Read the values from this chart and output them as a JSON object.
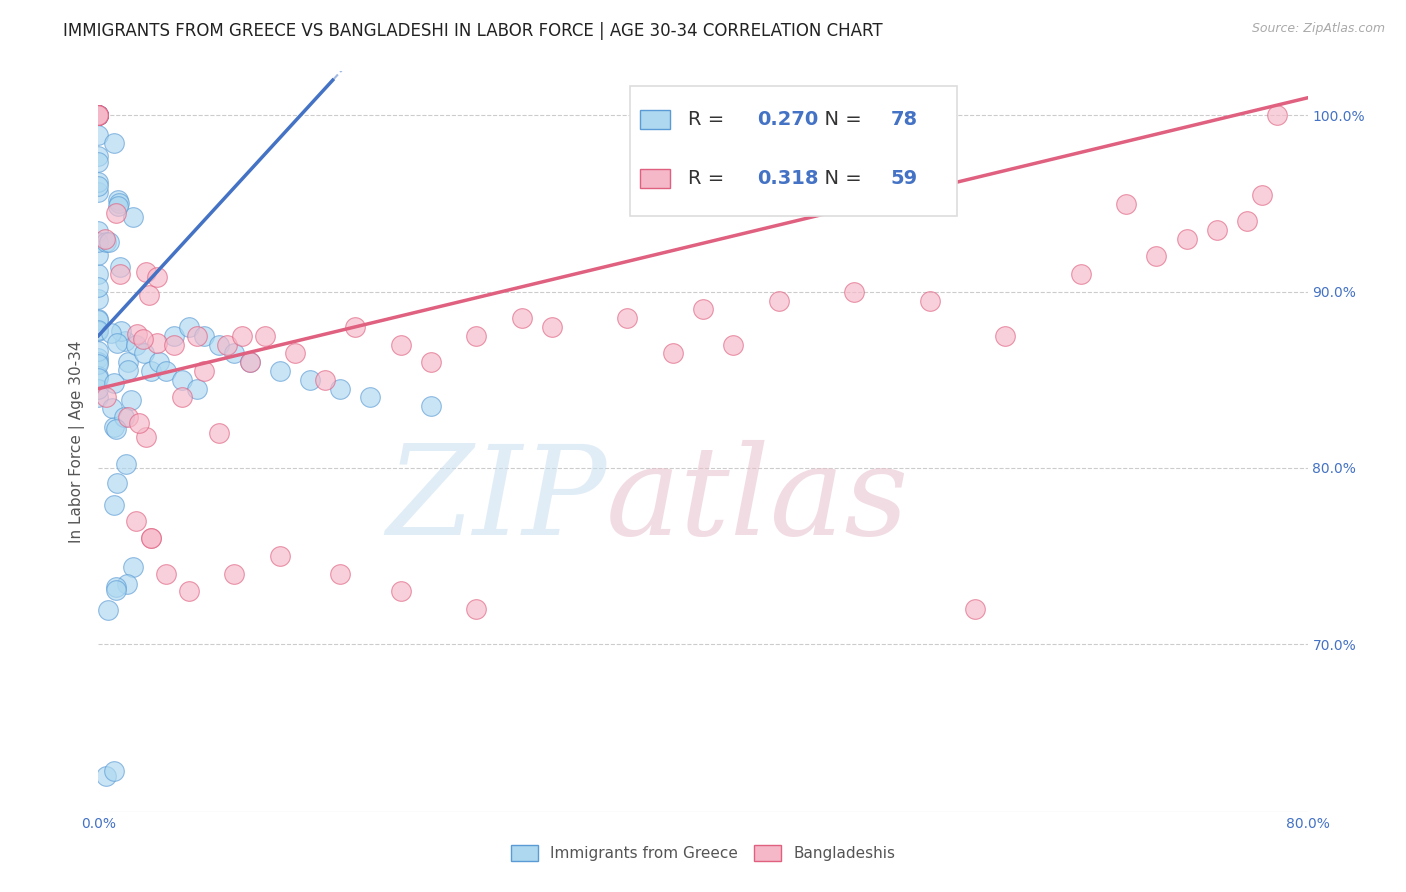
{
  "title": "IMMIGRANTS FROM GREECE VS BANGLADESHI IN LABOR FORCE | AGE 30-34 CORRELATION CHART",
  "source": "Source: ZipAtlas.com",
  "ylabel": "In Labor Force | Age 30-34",
  "xlim": [
    0.0,
    0.8
  ],
  "ylim": [
    0.605,
    1.025
  ],
  "yticks_right": [
    0.7,
    0.8,
    0.9,
    1.0
  ],
  "ytick_right_labels": [
    "70.0%",
    "80.0%",
    "90.0%",
    "100.0%"
  ],
  "grid_color": "#cccccc",
  "background_color": "#ffffff",
  "legend_R1": "0.270",
  "legend_N1": "78",
  "legend_R2": "0.318",
  "legend_N2": "59",
  "legend_label1": "Immigrants from Greece",
  "legend_label2": "Bangladeshis",
  "blue_color": "#add8f0",
  "blue_edge_color": "#5b9bd5",
  "blue_line_color": "#4472c4",
  "pink_color": "#f5b8c8",
  "pink_edge_color": "#e06080",
  "pink_line_color": "#e06080",
  "title_fontsize": 12,
  "axis_label_fontsize": 11,
  "tick_fontsize": 10,
  "legend_fontsize": 14,
  "blue_trend_x0": 0.0,
  "blue_trend_y0": 0.875,
  "blue_trend_x1": 0.155,
  "blue_trend_y1": 1.02,
  "pink_trend_x0": 0.0,
  "pink_trend_y0": 0.845,
  "pink_trend_x1": 0.8,
  "pink_trend_y1": 1.01
}
